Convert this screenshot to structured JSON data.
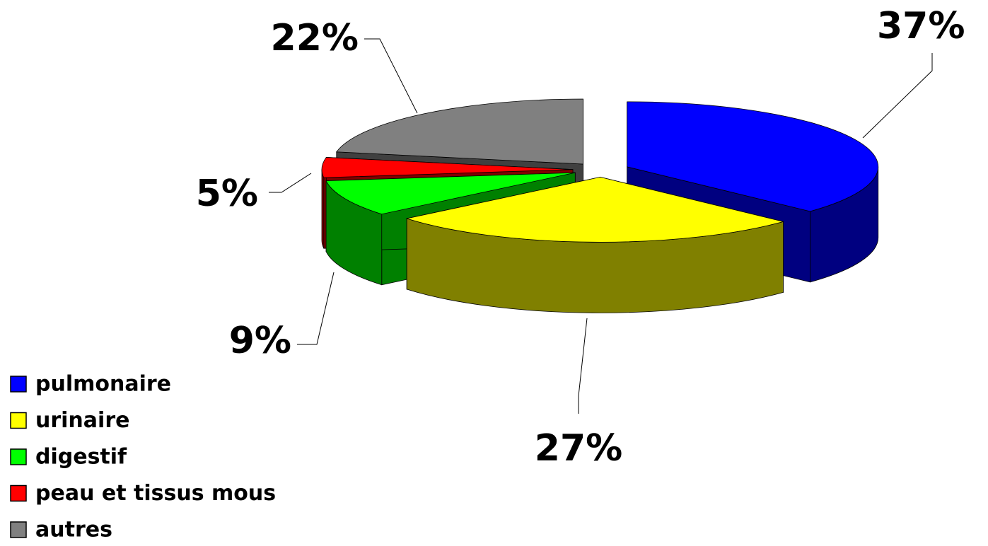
{
  "chart_data": {
    "type": "pie",
    "categories": [
      "pulmonaire",
      "urinaire",
      "digestif",
      "peau et tissus mous",
      "autres"
    ],
    "values": [
      37,
      27,
      9,
      5,
      22
    ],
    "value_labels": [
      "37%",
      "27%",
      "9%",
      "5%",
      "22%"
    ],
    "colors": [
      "#0000ff",
      "#ffff00",
      "#00ff00",
      "#ff0000",
      "#808080"
    ],
    "legend": "bottom-left"
  }
}
